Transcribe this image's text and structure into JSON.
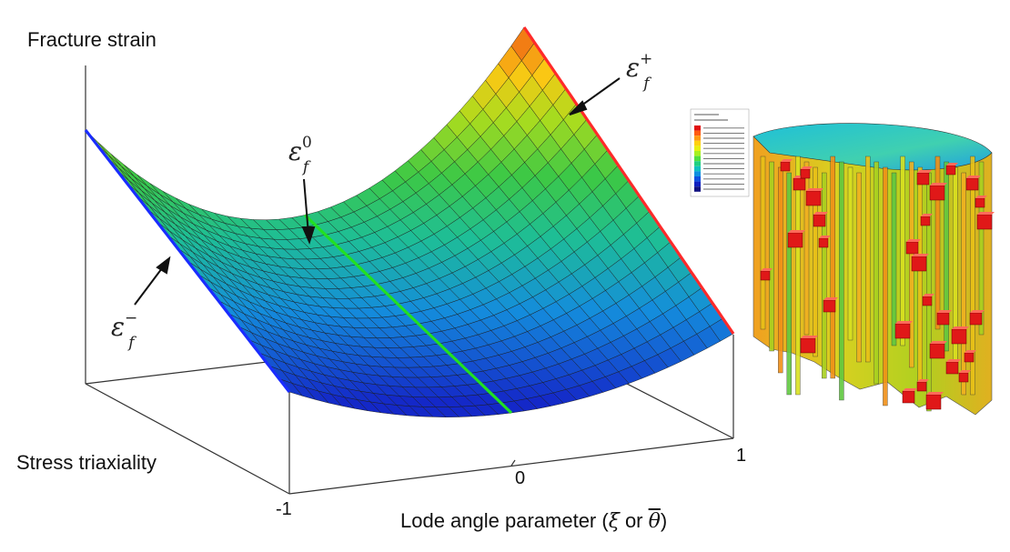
{
  "figure": {
    "yaxis_label": "Fracture strain",
    "zaxis_label": "Stress triaxiality",
    "xaxis_label_prefix": "Lode angle parameter (",
    "xaxis_symbol_xi": "ξ",
    "xaxis_or": " or ",
    "xaxis_symbol_theta": "θ",
    "xaxis_label_suffix": ")",
    "ticks": [
      "-1",
      "0",
      "1"
    ],
    "curve_labels": {
      "plus": {
        "base": "ε",
        "sub": "f",
        "sup": "+"
      },
      "zero": {
        "base": "ε",
        "sub": "f",
        "sup": "0"
      },
      "minus": {
        "base": "ε",
        "sub": "f",
        "sup": "−"
      }
    },
    "colors": {
      "plus_curve": "#ff2a2a",
      "zero_curve": "#22e022",
      "minus_curve": "#1a2cff",
      "axes": "#333333"
    }
  },
  "fe_model": {
    "legend_colors": [
      "#e01010",
      "#ff5a10",
      "#ff9a10",
      "#ffd010",
      "#e8f010",
      "#a8f020",
      "#50e040",
      "#20d080",
      "#10c0c0",
      "#1090e0",
      "#1050e0",
      "#1020c0",
      "#101080"
    ]
  }
}
